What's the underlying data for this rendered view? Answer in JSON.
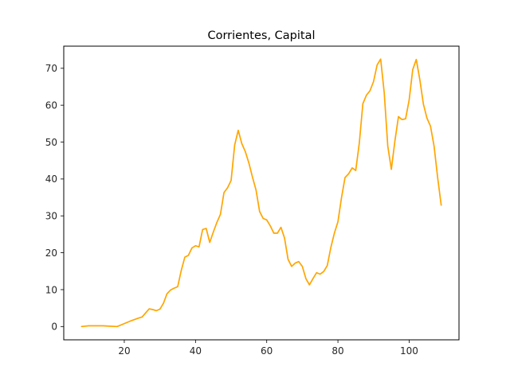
{
  "chart_data": {
    "type": "line",
    "title": "Corrientes, Capital",
    "xlabel": "",
    "ylabel": "",
    "xlim": [
      3,
      114
    ],
    "ylim": [
      -3.6,
      76
    ],
    "grid": false,
    "x_ticks": [
      20,
      40,
      60,
      80,
      100
    ],
    "y_ticks": [
      0,
      10,
      20,
      30,
      40,
      50,
      60,
      70
    ],
    "series": [
      {
        "color": "#ffa500",
        "x": [
          8,
          10,
          12,
          14,
          16,
          18,
          20,
          22,
          24,
          25,
          26,
          27,
          28,
          29,
          30,
          31,
          32,
          33,
          34,
          35,
          36,
          37,
          38,
          39,
          40,
          41,
          42,
          43,
          44,
          45,
          46,
          47,
          48,
          49,
          50,
          51,
          52,
          53,
          54,
          55,
          56,
          57,
          58,
          59,
          60,
          61,
          62,
          63,
          64,
          65,
          66,
          67,
          68,
          69,
          70,
          71,
          72,
          73,
          74,
          75,
          76,
          77,
          78,
          79,
          80,
          81,
          82,
          83,
          84,
          85,
          86,
          87,
          88,
          89,
          90,
          91,
          92,
          93,
          94,
          95,
          96,
          97,
          98,
          99,
          100,
          101,
          102,
          103,
          104,
          105,
          106,
          107,
          108,
          109
        ],
        "y": [
          0.0,
          0.2,
          0.2,
          0.2,
          0.1,
          0.0,
          0.8,
          1.6,
          2.3,
          2.6,
          3.7,
          4.8,
          4.6,
          4.3,
          4.7,
          6.3,
          8.9,
          9.9,
          10.4,
          10.8,
          15.2,
          18.8,
          19.3,
          21.3,
          21.9,
          21.6,
          26.3,
          26.6,
          22.8,
          25.6,
          28.2,
          30.4,
          36.3,
          37.6,
          39.6,
          49.2,
          53.2,
          49.6,
          47.4,
          44.3,
          40.5,
          37.0,
          31.2,
          29.3,
          28.9,
          27.3,
          25.3,
          25.3,
          26.9,
          24.0,
          18.2,
          16.3,
          17.2,
          17.6,
          16.3,
          13.0,
          11.3,
          13.0,
          14.6,
          14.2,
          14.9,
          16.5,
          21.4,
          25.3,
          28.4,
          34.9,
          40.4,
          41.4,
          43.0,
          42.3,
          49.7,
          60.4,
          62.7,
          63.9,
          66.4,
          70.9,
          72.5,
          63.4,
          48.9,
          42.6,
          50.3,
          56.9,
          56.1,
          56.3,
          61.4,
          69.6,
          72.4,
          66.9,
          60.3,
          56.5,
          54.3,
          48.9,
          40.4,
          32.9
        ]
      }
    ]
  }
}
